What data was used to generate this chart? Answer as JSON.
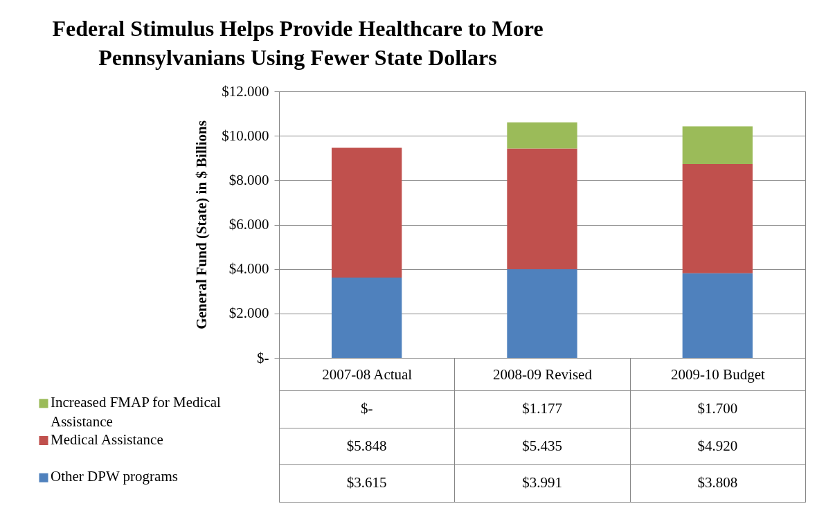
{
  "chart_data": {
    "type": "bar",
    "title": "Federal Stimulus Helps Provide Healthcare to More Pennsylvanians Using Fewer State Dollars",
    "ylabel": "General Fund (State) in  $ Billions",
    "categories": [
      "2007-08 Actual",
      "2008-09 Revised",
      "2009-10 Budget"
    ],
    "stacked": true,
    "series": [
      {
        "name": "Other DPW programs",
        "color": "#4f81bd",
        "values": [
          3.615,
          3.991,
          3.808
        ],
        "value_labels": [
          "$3.615",
          "$3.991",
          "$3.808"
        ]
      },
      {
        "name": "Medical Assistance",
        "color": "#c0504d",
        "values": [
          5.848,
          5.435,
          4.92
        ],
        "value_labels": [
          "$5.848",
          "$5.435",
          "$4.920"
        ]
      },
      {
        "name": "Increased FMAP for Medical Assistance",
        "color": "#9bbb59",
        "values": [
          0,
          1.177,
          1.7
        ],
        "value_labels": [
          "$-",
          "$1.177",
          "$1.700"
        ]
      }
    ],
    "ylim": [
      0,
      12
    ],
    "yticks": [
      {
        "value": 0,
        "label": "$-"
      },
      {
        "value": 2,
        "label": "$2.000"
      },
      {
        "value": 4,
        "label": "$4.000"
      },
      {
        "value": 6,
        "label": "$6.000"
      },
      {
        "value": 8,
        "label": "$8.000"
      },
      {
        "value": 10,
        "label": "$10.000"
      },
      {
        "value": 12,
        "label": "$12.000"
      }
    ],
    "grid": "y",
    "legend": "bottom"
  }
}
